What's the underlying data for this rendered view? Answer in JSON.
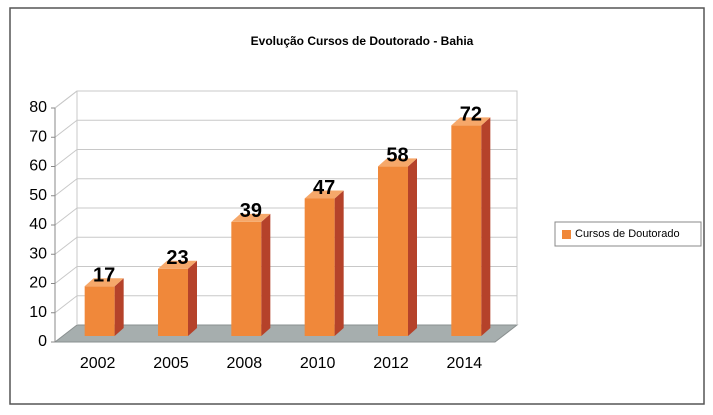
{
  "chart_data": {
    "type": "bar",
    "title": "Evolução Cursos de Doutorado - Bahia",
    "categories": [
      "2002",
      "2005",
      "2008",
      "2010",
      "2012",
      "2014"
    ],
    "series": [
      {
        "name": "Cursos de Doutorado",
        "color": "#f0883a",
        "values": [
          17,
          23,
          39,
          47,
          58,
          72
        ]
      }
    ],
    "ylim": [
      0,
      80
    ],
    "yticks": [
      0,
      10,
      20,
      30,
      40,
      50,
      60,
      70,
      80
    ],
    "grid": true,
    "legend": "right"
  }
}
